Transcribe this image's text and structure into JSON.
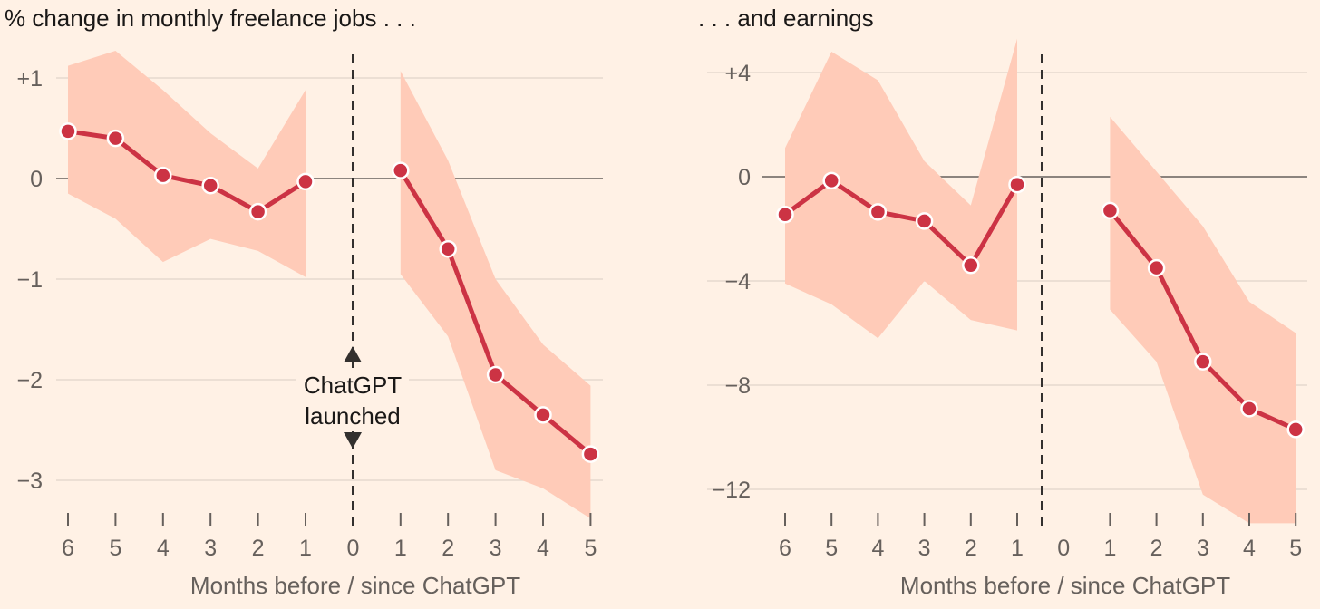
{
  "chart_data": [
    {
      "type": "line",
      "title": "% change in monthly freelance jobs . . .",
      "xlabel": "Months before / since ChatGPT",
      "ylabel": "",
      "ylim": [
        -3.3,
        1.2
      ],
      "y_ticks": [
        1,
        0,
        -1,
        -2,
        -3
      ],
      "y_tick_labels": [
        "+1",
        "0",
        "−1",
        "−2",
        "−3"
      ],
      "x_categories": [
        "6",
        "5",
        "4",
        "3",
        "2",
        "1",
        "0",
        "1",
        "2",
        "3",
        "4",
        "5"
      ],
      "launch_index": 6,
      "annotation": [
        "ChatGPT",
        "launched"
      ],
      "series": [
        {
          "name": "before",
          "indices": [
            0,
            1,
            2,
            3,
            4,
            5
          ],
          "values": [
            0.47,
            0.4,
            0.03,
            -0.07,
            -0.33,
            -0.03
          ],
          "upper": [
            1.12,
            1.27,
            0.88,
            0.45,
            0.1,
            0.88
          ],
          "lower": [
            -0.15,
            -0.4,
            -0.83,
            -0.6,
            -0.72,
            -0.98
          ]
        },
        {
          "name": "after",
          "indices": [
            7,
            8,
            9,
            10,
            11
          ],
          "values": [
            0.08,
            -0.7,
            -1.95,
            -2.35,
            -2.74
          ],
          "upper": [
            1.07,
            0.18,
            -1.0,
            -1.65,
            -2.06
          ],
          "lower": [
            -0.95,
            -1.57,
            -2.9,
            -3.08,
            -3.38
          ]
        }
      ]
    },
    {
      "type": "line",
      "title": ". . . and earnings",
      "xlabel": "Months before / since ChatGPT",
      "ylabel": "",
      "ylim": [
        -13.3,
        5.3
      ],
      "y_ticks": [
        4,
        0,
        -4,
        -8,
        -12
      ],
      "y_tick_labels": [
        "+4",
        "0",
        "−4",
        "−8",
        "−12"
      ],
      "x_categories": [
        "6",
        "5",
        "4",
        "3",
        "2",
        "1",
        "0",
        "1",
        "2",
        "3",
        "4",
        "5"
      ],
      "launch_index": 6,
      "series": [
        {
          "name": "before",
          "indices": [
            0,
            1,
            2,
            3,
            4,
            5
          ],
          "values": [
            -1.45,
            -0.15,
            -1.35,
            -1.7,
            -3.4,
            -0.3
          ],
          "upper": [
            1.1,
            4.8,
            3.7,
            0.6,
            -1.1,
            5.3
          ],
          "lower": [
            -4.1,
            -4.9,
            -6.2,
            -4.0,
            -5.5,
            -5.9
          ]
        },
        {
          "name": "after",
          "indices": [
            7,
            8,
            9,
            10,
            11
          ],
          "values": [
            -1.3,
            -3.5,
            -7.1,
            -8.9,
            -9.7
          ],
          "upper": [
            2.3,
            0.2,
            -1.9,
            -4.8,
            -6.0
          ],
          "lower": [
            -5.1,
            -7.1,
            -12.2,
            -13.3,
            -13.3
          ]
        }
      ]
    }
  ]
}
